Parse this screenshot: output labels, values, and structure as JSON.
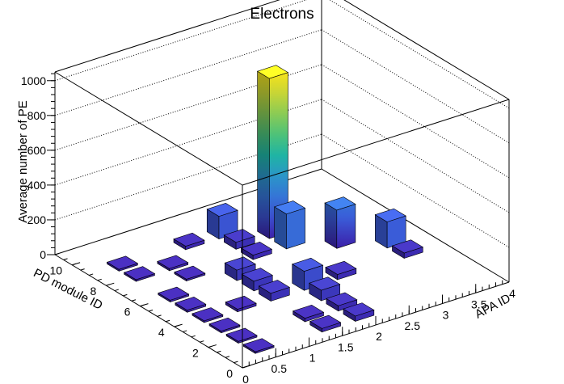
{
  "chart_data": {
    "type": "lego",
    "title": "Electrons",
    "xlabel": "APA ID",
    "ylabel": "PD module ID",
    "zlabel": "Average number of PE",
    "xlim": [
      0,
      4
    ],
    "ylim": [
      0,
      11
    ],
    "zlim": [
      0,
      1050
    ],
    "x_ticks": [
      "0",
      "0.5",
      "1",
      "1.5",
      "2",
      "2.5",
      "3",
      "3.5",
      "4"
    ],
    "y_ticks": [
      "0",
      "2",
      "4",
      "6",
      "8",
      "10"
    ],
    "z_ticks": [
      "0",
      "200",
      "400",
      "600",
      "800",
      "1000"
    ],
    "grid": true,
    "colormap": [
      "#3c1fa8",
      "#3a5dd9",
      "#2f8ad4",
      "#1fb4a4",
      "#5cc66b",
      "#b7d03f",
      "#f7e31a"
    ],
    "bins": [
      {
        "x": 0.5,
        "y": 1,
        "z": 10
      },
      {
        "x": 0.5,
        "y": 2,
        "z": 10
      },
      {
        "x": 0.5,
        "y": 3,
        "z": 10
      },
      {
        "x": 0.5,
        "y": 4,
        "z": 10
      },
      {
        "x": 0.5,
        "y": 5,
        "z": 12
      },
      {
        "x": 0.5,
        "y": 6,
        "z": 10
      },
      {
        "x": 0.5,
        "y": 8,
        "z": 10
      },
      {
        "x": 0.5,
        "y": 9,
        "z": 10
      },
      {
        "x": 1.0,
        "y": 4,
        "z": 15
      },
      {
        "x": 1.0,
        "y": 7,
        "z": 10
      },
      {
        "x": 1.0,
        "y": 8,
        "z": 12
      },
      {
        "x": 1.5,
        "y": 1,
        "z": 20
      },
      {
        "x": 1.5,
        "y": 2,
        "z": 20
      },
      {
        "x": 1.5,
        "y": 4,
        "z": 45
      },
      {
        "x": 1.5,
        "y": 5,
        "z": 55
      },
      {
        "x": 1.5,
        "y": 6,
        "z": 60
      },
      {
        "x": 1.5,
        "y": 9,
        "z": 20
      },
      {
        "x": 2.0,
        "y": 1,
        "z": 30
      },
      {
        "x": 2.0,
        "y": 2,
        "z": 30
      },
      {
        "x": 2.0,
        "y": 3,
        "z": 60
      },
      {
        "x": 2.0,
        "y": 4,
        "z": 110
      },
      {
        "x": 2.0,
        "y": 7,
        "z": 25
      },
      {
        "x": 2.0,
        "y": 8,
        "z": 40
      },
      {
        "x": 2.0,
        "y": 9,
        "z": 130
      },
      {
        "x": 2.5,
        "y": 4,
        "z": 30
      },
      {
        "x": 2.5,
        "y": 7,
        "z": 200
      },
      {
        "x": 2.5,
        "y": 8,
        "z": 920
      },
      {
        "x": 3.0,
        "y": 6,
        "z": 220
      },
      {
        "x": 3.5,
        "y": 4,
        "z": 30
      },
      {
        "x": 3.5,
        "y": 5,
        "z": 150
      }
    ]
  }
}
